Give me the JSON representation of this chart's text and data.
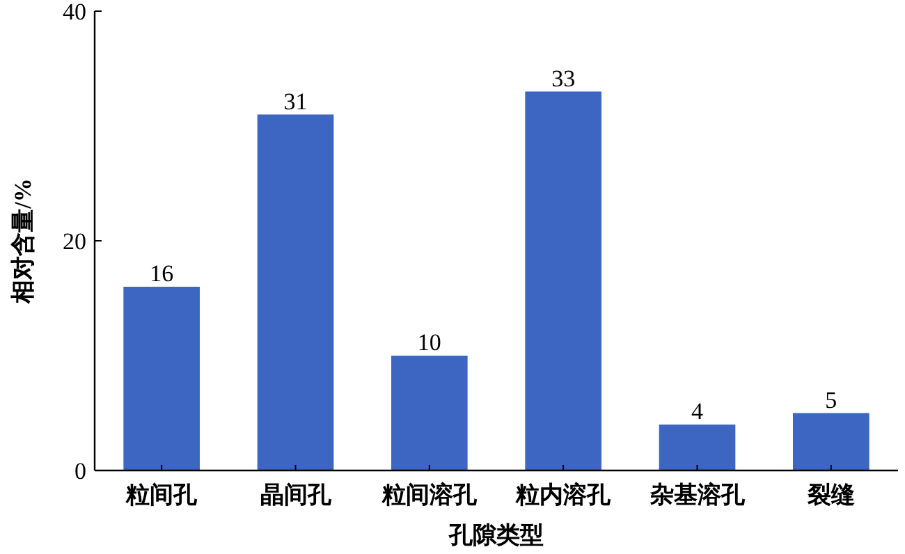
{
  "chart_data": {
    "type": "bar",
    "xlabel": "孔隙类型",
    "ylabel": "相对含量/%",
    "categories": [
      "粒间孔",
      "晶间孔",
      "粒间溶孔",
      "粒内溶孔",
      "杂基溶孔",
      "裂缝"
    ],
    "values": [
      16,
      31,
      10,
      33,
      4,
      5
    ],
    "color": "#3d66c2",
    "ylim": [
      0,
      40
    ],
    "yticks": [
      0,
      20,
      40
    ],
    "data_labels": true,
    "grid": false
  }
}
